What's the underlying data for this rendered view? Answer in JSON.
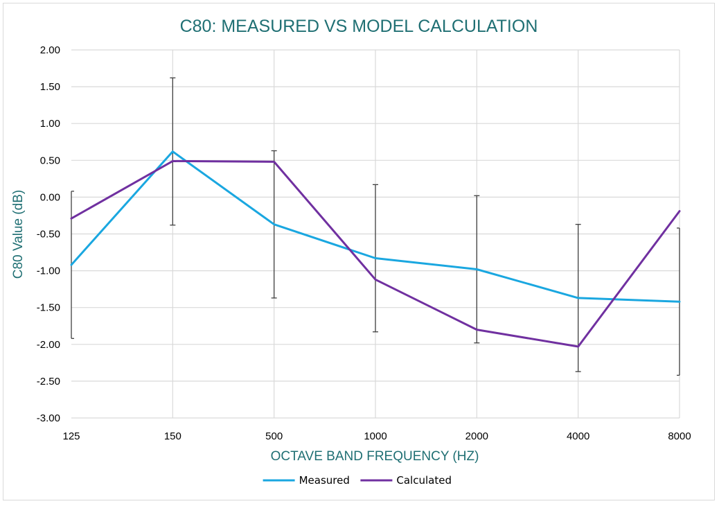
{
  "chart_data": {
    "type": "line",
    "title": "C80: MEASURED VS MODEL CALCULATION",
    "xlabel": "OCTAVE BAND FREQUENCY (HZ)",
    "ylabel": "C80 Value (dB)",
    "categories": [
      "125",
      "150",
      "500",
      "1000",
      "2000",
      "4000",
      "8000"
    ],
    "ylim": [
      -3.0,
      2.0
    ],
    "ytick_step": 0.5,
    "ytick_labels": [
      "2.00",
      "1.50",
      "1.00",
      "0.50",
      "0.00",
      "-0.50",
      "-1.00",
      "-1.50",
      "-2.00",
      "-2.50",
      "-3.00"
    ],
    "grid": true,
    "legend_position": "bottom",
    "series": [
      {
        "name": "Measured",
        "color": "#1aa7e0",
        "values": [
          -0.92,
          0.62,
          -0.37,
          -0.83,
          -0.98,
          -1.37,
          -1.42
        ],
        "error_bars": [
          1.0,
          1.0,
          1.0,
          1.0,
          1.0,
          1.0,
          1.0
        ]
      },
      {
        "name": "Calculated",
        "color": "#7030a0",
        "values": [
          -0.29,
          0.49,
          0.48,
          -1.12,
          -1.8,
          -2.03,
          -0.19
        ]
      }
    ],
    "error_bar_color": "#404040",
    "grid_color": "#d9d9d9"
  }
}
